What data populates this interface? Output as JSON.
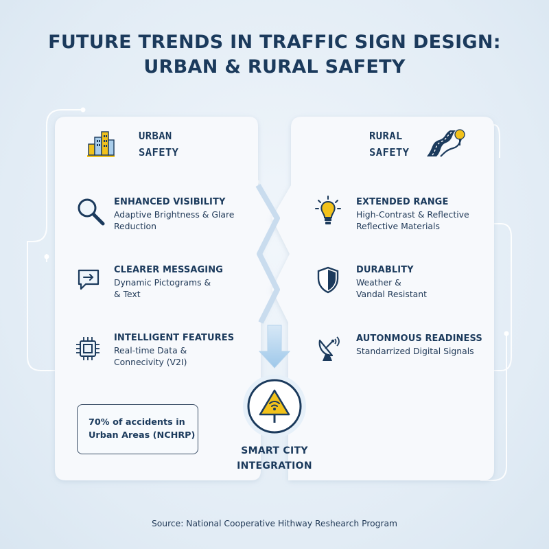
{
  "title": {
    "line1": "FUTURE TRENDS IN TRAFFIC SIGN DESIGN:",
    "line2": "URBAN & RURAL SAFETY"
  },
  "urban": {
    "heading": {
      "line1": "URBAN",
      "line2": "SAFETY"
    },
    "icon": "city-buildings-icon",
    "items": [
      {
        "icon": "magnifier-icon",
        "title": "ENHANCED VISIBILITY",
        "desc1": "Adaptive Brightness & Glare",
        "desc2": "Reduction"
      },
      {
        "icon": "message-bubble-icon",
        "title": "CLEARER MESSAGING",
        "desc1": "Dynamic Pictograms &",
        "desc2": "& Text"
      },
      {
        "icon": "chip-icon",
        "title": "INTELLIGENT FEATURES",
        "desc1": "Real-time Data &",
        "desc2": "Connecivity (V2I)"
      }
    ],
    "stat": {
      "line1": "70% of accidents in",
      "line2": "Urban Areas (NCHRP)"
    }
  },
  "rural": {
    "heading": {
      "line1": "RURAL",
      "line2": "SAFETY"
    },
    "icon": "winding-road-icon",
    "items": [
      {
        "icon": "lightbulb-icon",
        "title": "EXTENDED RANGE",
        "desc1": "High-Contrast & Reflective",
        "desc2": "Reflective Materials"
      },
      {
        "icon": "shield-icon",
        "title": "DURABLITY",
        "desc1": "Weather &",
        "desc2": "Vandal Resistant"
      },
      {
        "icon": "satellite-dish-icon",
        "title": "AUTONMOUS READINESS",
        "desc1": "Standarrized Digital Signals",
        "desc2": ""
      }
    ]
  },
  "hub": {
    "icon": "smart-warning-sign-icon",
    "line1": "SMART CITY",
    "line2": "INTEGRATION"
  },
  "source": "Source: National Cooperative Hithway Reshearch Program",
  "colors": {
    "navy": "#1b3a5c",
    "accent_yellow": "#f2c21b",
    "accent_blue": "#a9cdea",
    "panel": "#f7f9fc"
  }
}
